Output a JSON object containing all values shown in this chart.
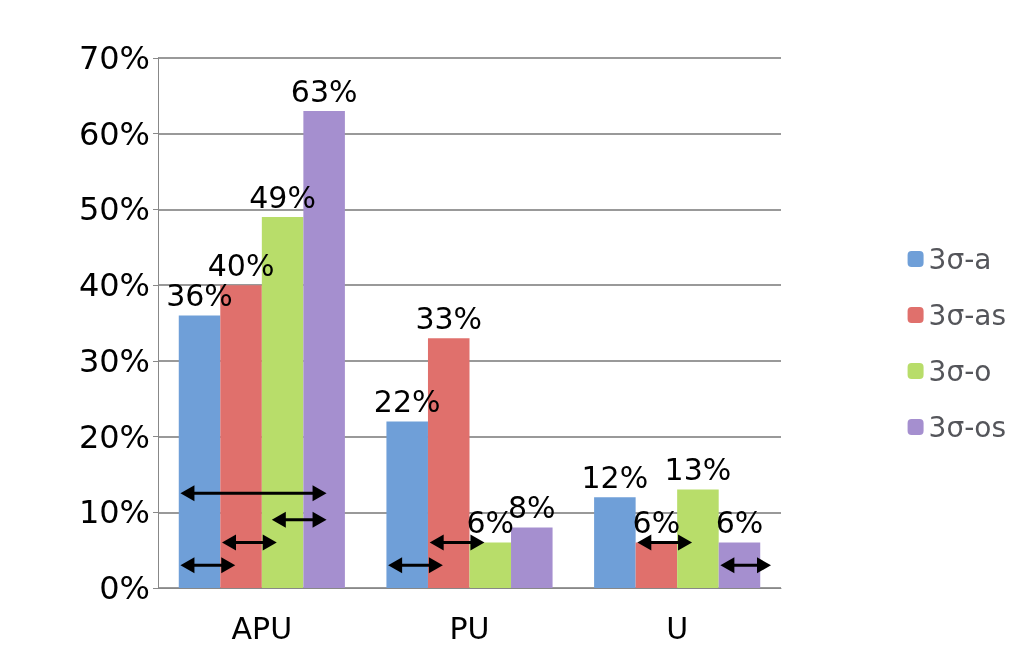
{
  "chart_data": {
    "type": "bar",
    "categories": [
      "APU",
      "PU",
      "U"
    ],
    "series": [
      {
        "name": "3σ-a",
        "color": "#6f9fd8",
        "values": [
          36,
          22,
          12
        ],
        "value_labels": [
          "36%",
          "22%",
          "12%"
        ]
      },
      {
        "name": "3σ-as",
        "color": "#e0706c",
        "values": [
          40,
          33,
          6
        ],
        "value_labels": [
          "40%",
          "33%",
          "6%"
        ]
      },
      {
        "name": "3σ-o",
        "color": "#b8dd6a",
        "values": [
          49,
          6,
          13
        ],
        "value_labels": [
          "49%",
          "6%",
          "13%"
        ]
      },
      {
        "name": "3σ-os",
        "color": "#a58fcf",
        "values": [
          63,
          8,
          6
        ],
        "value_labels": [
          "63%",
          "8%",
          "6%"
        ]
      }
    ],
    "ylim": [
      0,
      70
    ],
    "yticks": [
      {
        "value": 0,
        "label": "0%"
      },
      {
        "value": 10,
        "label": "10%"
      },
      {
        "value": 20,
        "label": "20%"
      },
      {
        "value": 30,
        "label": "30%"
      },
      {
        "value": 40,
        "label": "40%"
      },
      {
        "value": 50,
        "label": "50%"
      },
      {
        "value": 60,
        "label": "60%"
      },
      {
        "value": 70,
        "label": "70%"
      }
    ],
    "grid": "y",
    "legend": "right"
  }
}
